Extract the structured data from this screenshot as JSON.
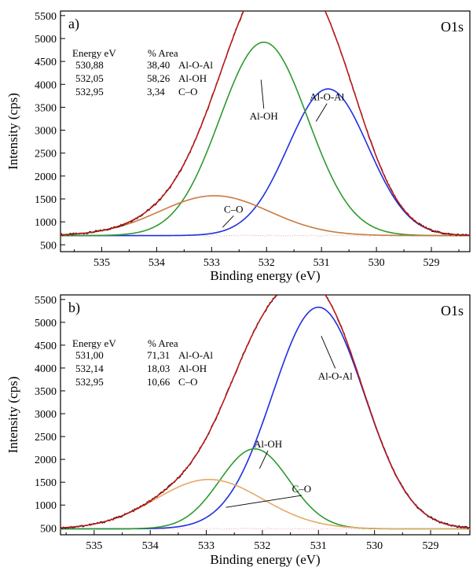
{
  "chart_data": [
    {
      "type": "line",
      "panel_label": "a)",
      "corner_label": "O1s",
      "xlabel": "Binding energy (eV)",
      "ylabel": "Intensity (cps)",
      "xlim": [
        535.75,
        528.3
      ],
      "ylim": [
        350,
        5600
      ],
      "x_reversed": true,
      "x_ticks": [
        535,
        534,
        533,
        532,
        531,
        530,
        529
      ],
      "y_ticks": [
        500,
        1000,
        1500,
        2000,
        2500,
        3000,
        3500,
        4000,
        4500,
        5000,
        5500
      ],
      "background": 700,
      "table": {
        "headers": [
          "Energy eV",
          "% Area",
          ""
        ],
        "rows": [
          [
            "530,88",
            "38,40",
            "Al-O-Al"
          ],
          [
            "532,05",
            "58,26",
            "Al-OH"
          ],
          [
            "532,95",
            "3,34",
            "C–O"
          ]
        ]
      },
      "components": [
        {
          "name": "Al-O-Al",
          "center": 530.88,
          "height": 3200,
          "sigma": 0.73,
          "color": "#1f2fe0"
        },
        {
          "name": "Al-OH",
          "center": 532.05,
          "height": 4220,
          "sigma": 0.8,
          "color": "#2e9a2e"
        },
        {
          "name": "C–O",
          "center": 532.95,
          "height": 870,
          "sigma": 1.0,
          "color": "#c87a40"
        }
      ],
      "annotations": [
        {
          "text": "Al-O-Al",
          "x": 530.9,
          "y": 3650,
          "ax": 531.1,
          "ay": 3190
        },
        {
          "text": "Al-OH",
          "x": 532.05,
          "y": 3230,
          "ax": 532.1,
          "ay": 4100
        },
        {
          "text": "C–O",
          "x": 532.6,
          "y": 1200,
          "ax": 532.8,
          "ay": 880
        }
      ],
      "envelope_color": "#c01818",
      "raw_color": "#111111"
    },
    {
      "type": "line",
      "panel_label": "b)",
      "corner_label": "O1s",
      "xlabel": "Binding energy (eV)",
      "ylabel": "Intensity (cps)",
      "xlim": [
        535.6,
        528.3
      ],
      "ylim": [
        350,
        5600
      ],
      "x_reversed": true,
      "x_ticks": [
        535,
        534,
        533,
        532,
        531,
        530,
        529
      ],
      "y_ticks": [
        500,
        1000,
        1500,
        2000,
        2500,
        3000,
        3500,
        4000,
        4500,
        5000,
        5500
      ],
      "background": 480,
      "table": {
        "headers": [
          "Energy eV",
          "% Area",
          ""
        ],
        "rows": [
          [
            "531,00",
            "71,31",
            "Al-O-Al"
          ],
          [
            "532,14",
            "18,03",
            "Al-OH"
          ],
          [
            "532,95",
            "10,66",
            "C–O"
          ]
        ]
      },
      "components": [
        {
          "name": "Al-O-Al",
          "center": 531.0,
          "height": 4850,
          "sigma": 0.82,
          "color": "#1f2fe0"
        },
        {
          "name": "Al-OH",
          "center": 532.14,
          "height": 1750,
          "sigma": 0.62,
          "color": "#2e9a2e"
        },
        {
          "name": "C–O",
          "center": 532.95,
          "height": 1080,
          "sigma": 0.95,
          "color": "#e8a868"
        }
      ],
      "annotations": [
        {
          "text": "Al-O-Al",
          "x": 530.7,
          "y": 3750,
          "ax": 530.95,
          "ay": 4700
        },
        {
          "text": "Al-OH",
          "x": 531.9,
          "y": 2260,
          "ax": 532.05,
          "ay": 1800
        },
        {
          "text": "C–O",
          "x": 531.3,
          "y": 1280,
          "ax": 532.65,
          "ay": 950
        }
      ],
      "envelope_color": "#c01818",
      "raw_color": "#111111"
    }
  ]
}
